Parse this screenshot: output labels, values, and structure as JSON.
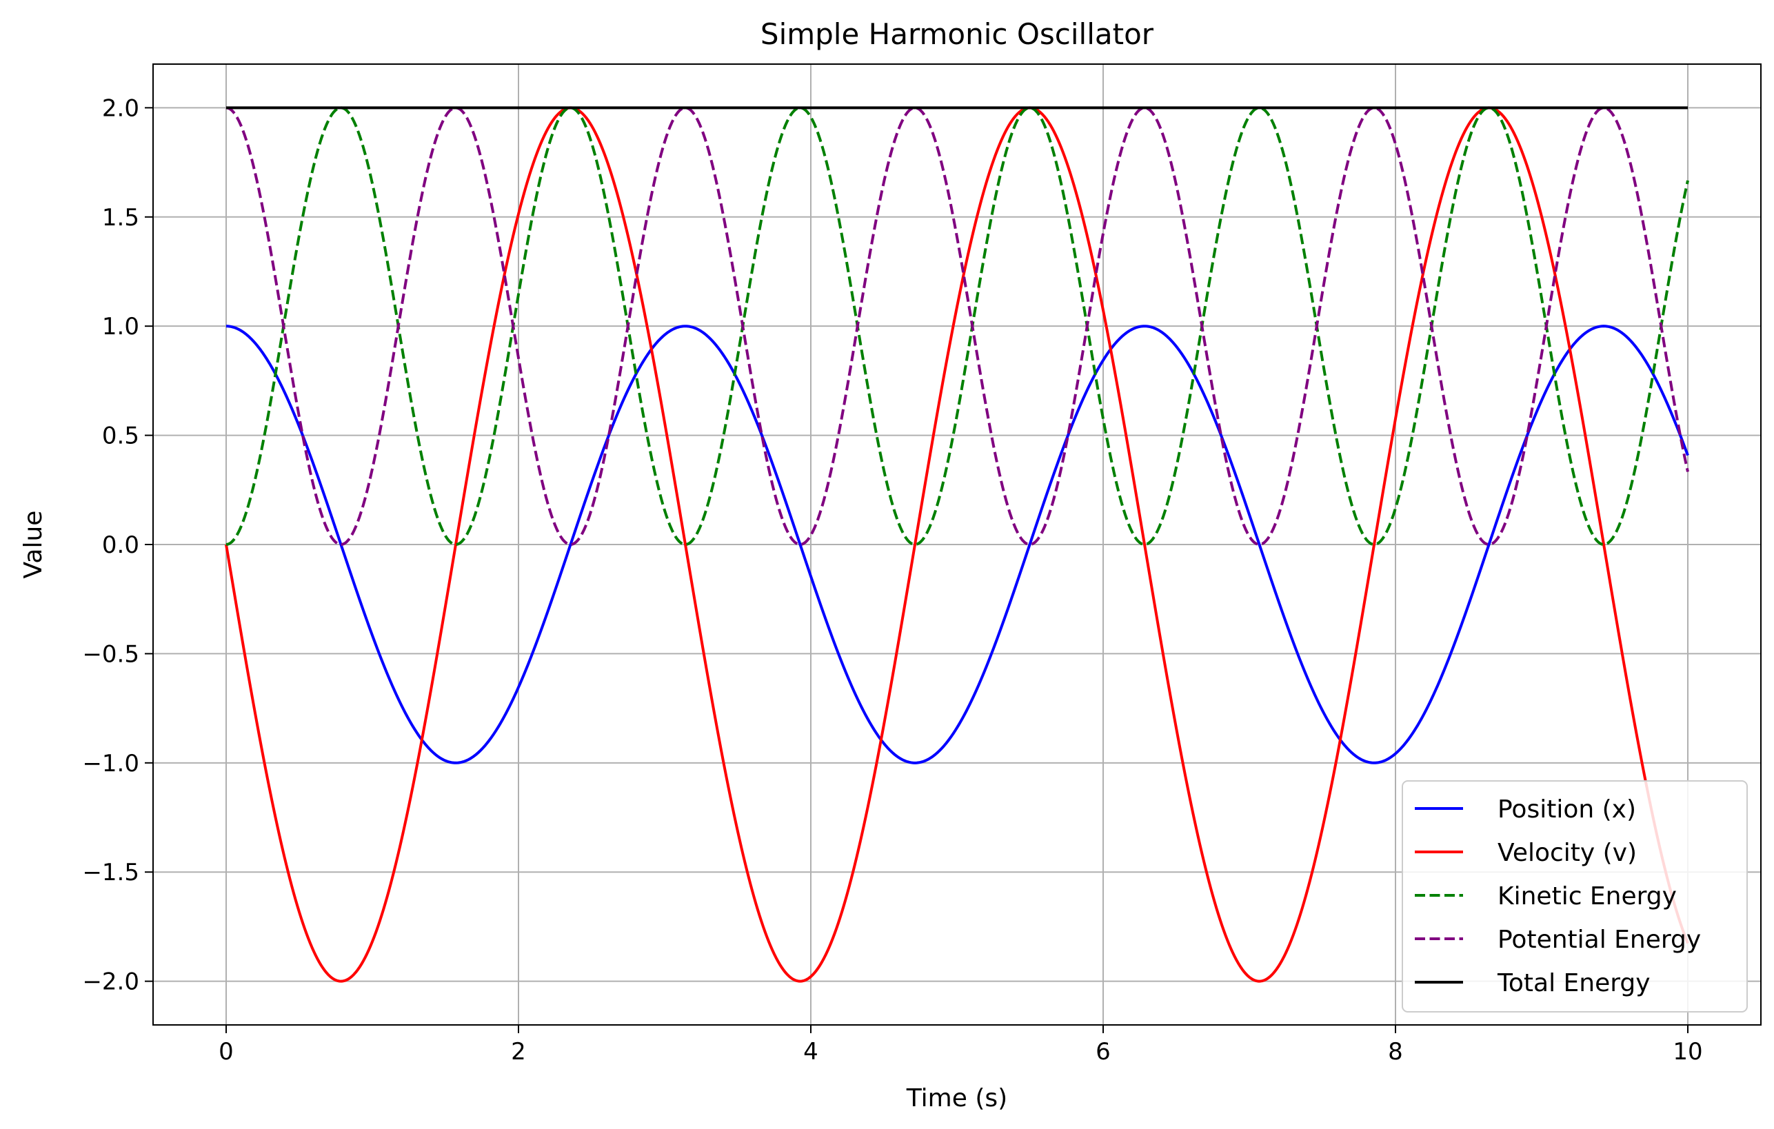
{
  "chart_data": {
    "type": "line",
    "title": "Simple Harmonic Oscillator",
    "xlabel": "Time (s)",
    "ylabel": "Value",
    "xlim": [
      -0.5,
      10.5
    ],
    "ylim": [
      -2.2,
      2.2
    ],
    "xticks": [
      0,
      2,
      4,
      6,
      8,
      10
    ],
    "yticks": [
      -2.0,
      -1.5,
      -1.0,
      -0.5,
      0.0,
      0.5,
      1.0,
      1.5,
      2.0
    ],
    "xtick_labels": [
      "0",
      "2",
      "4",
      "6",
      "8",
      "10"
    ],
    "ytick_labels": [
      "−2.0",
      "−1.5",
      "−1.0",
      "−0.5",
      "0.0",
      "0.5",
      "1.0",
      "1.5",
      "2.0"
    ],
    "grid": true,
    "legend_position": "lower-right",
    "x_range": [
      0,
      10
    ],
    "sample_step": 0.05,
    "series": [
      {
        "name": "Position (x)",
        "formula": "x = cos(2t)",
        "color": "#0000ff",
        "dash": "solid",
        "key_points": [
          [
            0,
            1.0
          ],
          [
            0.785,
            0.0
          ],
          [
            1.571,
            -1.0
          ],
          [
            3.142,
            1.0
          ],
          [
            4.712,
            -1.0
          ],
          [
            6.283,
            1.0
          ],
          [
            7.854,
            -1.0
          ],
          [
            9.425,
            1.0
          ],
          [
            10,
            0.408
          ]
        ]
      },
      {
        "name": "Velocity (v)",
        "formula": "v = -2 sin(2t)",
        "color": "#ff0000",
        "dash": "solid",
        "key_points": [
          [
            0,
            0.0
          ],
          [
            0.785,
            -2.0
          ],
          [
            2.356,
            2.0
          ],
          [
            3.927,
            -2.0
          ],
          [
            5.498,
            2.0
          ],
          [
            7.069,
            -2.0
          ],
          [
            8.639,
            2.0
          ],
          [
            10,
            -1.826
          ]
        ]
      },
      {
        "name": "Kinetic Energy",
        "formula": "KE = 2 sin²(2t)",
        "color": "#008000",
        "dash": "dashed",
        "key_points": [
          [
            0,
            0.0
          ],
          [
            0.785,
            2.0
          ],
          [
            1.571,
            0.0
          ],
          [
            2.356,
            2.0
          ],
          [
            3.142,
            0.0
          ],
          [
            10,
            1.667
          ]
        ]
      },
      {
        "name": "Potential Energy",
        "formula": "PE = 2 cos²(2t)",
        "color": "#800080",
        "dash": "dashed",
        "key_points": [
          [
            0,
            2.0
          ],
          [
            0.785,
            0.0
          ],
          [
            1.571,
            2.0
          ],
          [
            2.356,
            0.0
          ],
          [
            3.142,
            2.0
          ],
          [
            10,
            0.333
          ]
        ]
      },
      {
        "name": "Total Energy",
        "formula": "E = 2",
        "color": "#000000",
        "dash": "solid",
        "key_points": [
          [
            0,
            2.0
          ],
          [
            10,
            2.0
          ]
        ]
      }
    ]
  }
}
